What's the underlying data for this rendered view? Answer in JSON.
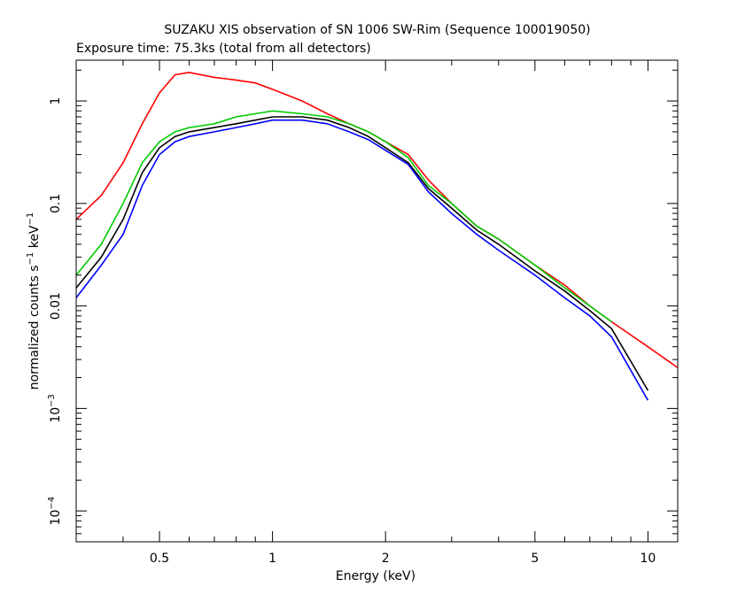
{
  "chart_data": {
    "type": "line",
    "title": "SUZAKU XIS observation of SN 1006 SW-Rim (Sequence 100019050)",
    "subtitle": "Exposure time: 75.3ks (total from all detectors)",
    "xlabel": "Energy (keV)",
    "ylabel": {
      "pre": "normalized counts s",
      "sup1": "−1",
      "mid": " keV",
      "sup2": "−1"
    },
    "x_scale": "log",
    "y_scale": "log",
    "xlim": [
      0.3,
      12
    ],
    "ylim": [
      5e-05,
      2.5
    ],
    "x_ticks": [
      {
        "value": 0.5,
        "label": "0.5"
      },
      {
        "value": 1,
        "label": "1"
      },
      {
        "value": 2,
        "label": "2"
      },
      {
        "value": 5,
        "label": "5"
      },
      {
        "value": 10,
        "label": "10"
      }
    ],
    "y_ticks": [
      {
        "value": 1,
        "label": "1"
      },
      {
        "value": 0.1,
        "label": "0.1"
      },
      {
        "value": 0.01,
        "label": "0.01"
      },
      {
        "value": 0.001,
        "base": "10",
        "exp": "−3"
      },
      {
        "value": 0.0001,
        "base": "10",
        "exp": "−4"
      }
    ],
    "grid": false,
    "series": [
      {
        "color": "#ff0000",
        "x": [
          0.3,
          0.35,
          0.4,
          0.45,
          0.5,
          0.55,
          0.6,
          0.7,
          0.8,
          0.9,
          1.0,
          1.2,
          1.4,
          1.6,
          1.8,
          2.0,
          2.3,
          2.6,
          3.0,
          3.5,
          4.0,
          5.0,
          6.0,
          7.0,
          8.0,
          10.0,
          12.0
        ],
        "values": [
          0.07,
          0.12,
          0.25,
          0.6,
          1.2,
          1.8,
          1.9,
          1.7,
          1.6,
          1.5,
          1.3,
          1.0,
          0.75,
          0.6,
          0.5,
          0.4,
          0.3,
          0.17,
          0.1,
          0.06,
          0.045,
          0.025,
          0.016,
          0.01,
          0.007,
          0.004,
          0.0025
        ]
      },
      {
        "color": "#000000",
        "x": [
          0.3,
          0.35,
          0.4,
          0.45,
          0.5,
          0.55,
          0.6,
          0.7,
          0.8,
          0.9,
          1.0,
          1.2,
          1.4,
          1.6,
          1.8,
          2.0,
          2.3,
          2.6,
          3.0,
          3.5,
          4.0,
          5.0,
          6.0,
          7.0,
          8.0,
          10.0
        ],
        "values": [
          0.015,
          0.03,
          0.07,
          0.2,
          0.35,
          0.45,
          0.5,
          0.55,
          0.6,
          0.65,
          0.7,
          0.7,
          0.65,
          0.55,
          0.45,
          0.35,
          0.25,
          0.14,
          0.09,
          0.055,
          0.04,
          0.022,
          0.014,
          0.009,
          0.006,
          0.0015
        ]
      },
      {
        "color": "#00cc00",
        "x": [
          0.3,
          0.35,
          0.4,
          0.45,
          0.5,
          0.55,
          0.6,
          0.7,
          0.8,
          0.9,
          1.0,
          1.2,
          1.4,
          1.6,
          1.8,
          2.0,
          2.3,
          2.6,
          3.0,
          3.5,
          4.0,
          5.0,
          6.0,
          7.0,
          8.0
        ],
        "values": [
          0.02,
          0.04,
          0.1,
          0.25,
          0.4,
          0.5,
          0.55,
          0.6,
          0.7,
          0.75,
          0.8,
          0.75,
          0.7,
          0.6,
          0.5,
          0.4,
          0.28,
          0.15,
          0.1,
          0.06,
          0.045,
          0.025,
          0.015,
          0.01,
          0.007
        ]
      },
      {
        "color": "#0000ff",
        "x": [
          0.3,
          0.35,
          0.4,
          0.45,
          0.5,
          0.55,
          0.6,
          0.7,
          0.8,
          0.9,
          1.0,
          1.2,
          1.4,
          1.6,
          1.8,
          2.0,
          2.3,
          2.6,
          3.0,
          3.5,
          4.0,
          5.0,
          6.0,
          7.0,
          8.0,
          10.0
        ],
        "values": [
          0.012,
          0.025,
          0.05,
          0.15,
          0.3,
          0.4,
          0.45,
          0.5,
          0.55,
          0.6,
          0.65,
          0.65,
          0.6,
          0.5,
          0.42,
          0.33,
          0.24,
          0.13,
          0.08,
          0.05,
          0.035,
          0.02,
          0.012,
          0.008,
          0.005,
          0.0012
        ]
      }
    ]
  }
}
